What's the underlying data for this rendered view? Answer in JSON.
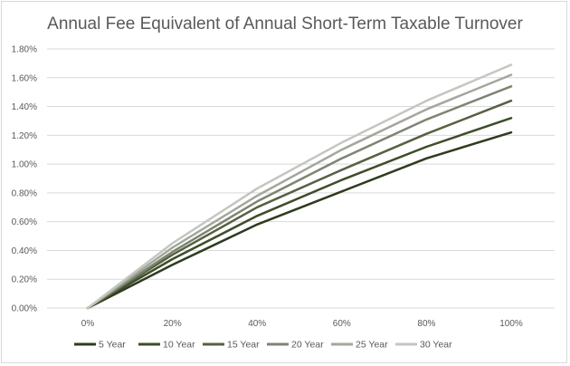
{
  "chart_data": {
    "type": "line",
    "title": "Annual Fee Equivalent of Annual Short-Term Taxable Turnover",
    "xlabel": "",
    "ylabel": "",
    "categories": [
      "0%",
      "20%",
      "40%",
      "60%",
      "80%",
      "100%"
    ],
    "x_values": [
      0,
      20,
      40,
      60,
      80,
      100
    ],
    "ylim": [
      0,
      1.8
    ],
    "yticks": [
      0,
      0.2,
      0.4,
      0.6,
      0.8,
      1.0,
      1.2,
      1.4,
      1.6,
      1.8
    ],
    "ytick_labels": [
      "0.00%",
      "0.20%",
      "0.40%",
      "0.60%",
      "0.80%",
      "1.00%",
      "1.20%",
      "1.40%",
      "1.60%",
      "1.80%"
    ],
    "grid": true,
    "legend_position": "bottom",
    "series": [
      {
        "name": "5 Year",
        "color": "#2e3b1f",
        "values": [
          0,
          0.3,
          0.58,
          0.81,
          1.04,
          1.22
        ]
      },
      {
        "name": "10 Year",
        "color": "#3d4d28",
        "values": [
          0,
          0.34,
          0.64,
          0.89,
          1.12,
          1.32
        ]
      },
      {
        "name": "15 Year",
        "color": "#566142",
        "values": [
          0,
          0.37,
          0.7,
          0.96,
          1.21,
          1.44
        ]
      },
      {
        "name": "20 Year",
        "color": "#7d8571",
        "values": [
          0,
          0.39,
          0.74,
          1.04,
          1.31,
          1.54
        ]
      },
      {
        "name": "25 Year",
        "color": "#a3a79c",
        "values": [
          0,
          0.42,
          0.78,
          1.1,
          1.38,
          1.62
        ]
      },
      {
        "name": "30 Year",
        "color": "#c4c6c0",
        "values": [
          0,
          0.45,
          0.83,
          1.15,
          1.44,
          1.69
        ]
      }
    ]
  }
}
